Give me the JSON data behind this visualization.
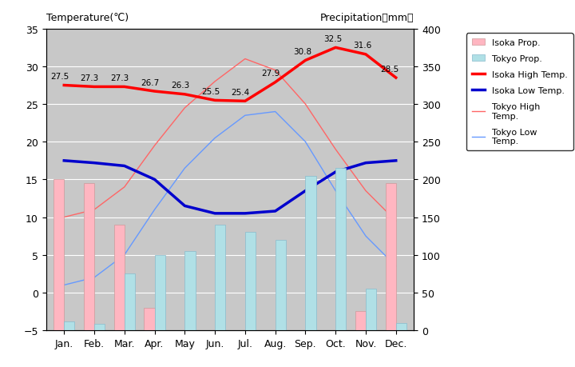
{
  "months": [
    "Jan.",
    "Feb.",
    "Mar.",
    "Apr.",
    "May",
    "Jun.",
    "Jul.",
    "Aug.",
    "Sep.",
    "Oct.",
    "Nov.",
    "Dec."
  ],
  "isoka_precip_mm": [
    200,
    195,
    140,
    30,
    0,
    0,
    0,
    0,
    0,
    0,
    25,
    195
  ],
  "tokyo_precip_mm": [
    12,
    8,
    75,
    100,
    105,
    140,
    130,
    120,
    205,
    215,
    55,
    10
  ],
  "isoka_high_temp": [
    27.5,
    27.3,
    27.3,
    26.7,
    26.3,
    25.5,
    25.4,
    27.9,
    30.8,
    32.5,
    31.6,
    28.5
  ],
  "isoka_low_temp": [
    17.5,
    17.2,
    16.8,
    15.0,
    11.5,
    10.5,
    10.5,
    10.8,
    13.5,
    16.0,
    17.2,
    17.5
  ],
  "tokyo_high_temp": [
    10.0,
    11.0,
    14.0,
    19.5,
    24.5,
    28.0,
    31.0,
    29.5,
    25.0,
    19.0,
    13.5,
    9.5
  ],
  "tokyo_low_temp": [
    1.0,
    2.0,
    5.0,
    11.0,
    16.5,
    20.5,
    23.5,
    24.0,
    20.0,
    13.5,
    7.5,
    3.5
  ],
  "isoka_high_labels": [
    "27.5",
    "27.3",
    "27.3",
    "26.7",
    "26.3",
    "25.5",
    "25.4",
    "27.9",
    "30.8",
    "32.5",
    "31.6",
    "28.5"
  ],
  "background_color": "#c8c8c8",
  "isoka_precip_color": "#ffb6c1",
  "tokyo_precip_color": "#b0e0e6",
  "isoka_high_color": "#ff0000",
  "isoka_low_color": "#0000cd",
  "tokyo_high_color": "#ff6666",
  "tokyo_low_color": "#6699ff",
  "ylim_temp": [
    -5,
    35
  ],
  "ylim_precip": [
    0,
    400
  ],
  "title_left": "Temperature(℃)",
  "title_right": "Precipitation（mm）"
}
